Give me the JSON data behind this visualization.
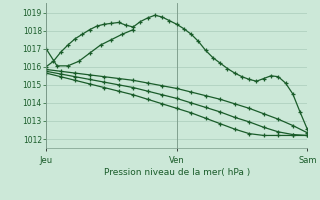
{
  "background_color": "#cce8d8",
  "grid_color": "#aaccbb",
  "line_color": "#1a5c2a",
  "title": "Pression niveau de la mer( hPa )",
  "ylim": [
    1011.5,
    1019.5
  ],
  "yticks": [
    1012,
    1013,
    1014,
    1015,
    1016,
    1017,
    1018,
    1019
  ],
  "day_labels": [
    "Jeu",
    "Ven",
    "Sam"
  ],
  "day_positions": [
    0,
    36,
    72
  ],
  "figsize": [
    3.2,
    2.0
  ],
  "dpi": 100,
  "series_main_x": [
    0,
    2,
    4,
    6,
    8,
    10,
    12,
    14,
    16,
    18,
    20,
    22,
    24,
    26,
    28,
    30,
    32,
    34,
    36,
    38,
    40,
    42,
    44,
    46,
    48,
    50,
    52,
    54,
    56,
    58,
    60,
    62,
    64,
    66,
    68,
    70,
    72
  ],
  "series_main_y": [
    1016.0,
    1016.3,
    1016.8,
    1017.2,
    1017.55,
    1017.8,
    1018.05,
    1018.25,
    1018.35,
    1018.4,
    1018.45,
    1018.3,
    1018.2,
    1018.5,
    1018.7,
    1018.85,
    1018.75,
    1018.55,
    1018.35,
    1018.1,
    1017.8,
    1017.4,
    1016.9,
    1016.5,
    1016.2,
    1015.9,
    1015.65,
    1015.45,
    1015.3,
    1015.2,
    1015.35,
    1015.5,
    1015.45,
    1015.1,
    1014.5,
    1013.5,
    1012.55
  ],
  "series_top_x": [
    0,
    3,
    6,
    9,
    12,
    15,
    18,
    21,
    24
  ],
  "series_top_y": [
    1017.0,
    1016.05,
    1016.05,
    1016.3,
    1016.75,
    1017.2,
    1017.5,
    1017.8,
    1018.05
  ],
  "series_low1_x": [
    0,
    4,
    8,
    12,
    16,
    20,
    24,
    28,
    32,
    36,
    40,
    44,
    48,
    52,
    56,
    60,
    64,
    68,
    72
  ],
  "series_low1_y": [
    1015.85,
    1015.75,
    1015.65,
    1015.55,
    1015.45,
    1015.35,
    1015.25,
    1015.1,
    1014.95,
    1014.8,
    1014.6,
    1014.4,
    1014.2,
    1013.95,
    1013.7,
    1013.4,
    1013.1,
    1012.75,
    1012.35
  ],
  "series_low2_x": [
    0,
    4,
    8,
    12,
    16,
    20,
    24,
    28,
    32,
    36,
    40,
    44,
    48,
    52,
    56,
    60,
    64,
    68,
    72
  ],
  "series_low2_y": [
    1015.75,
    1015.6,
    1015.45,
    1015.3,
    1015.15,
    1015.0,
    1014.85,
    1014.65,
    1014.45,
    1014.25,
    1014.0,
    1013.75,
    1013.5,
    1013.2,
    1012.95,
    1012.65,
    1012.4,
    1012.25,
    1012.2
  ],
  "series_low3_x": [
    0,
    4,
    8,
    12,
    16,
    20,
    24,
    28,
    32,
    36,
    40,
    44,
    48,
    52,
    56,
    60,
    64,
    68,
    72
  ],
  "series_low3_y": [
    1015.65,
    1015.45,
    1015.25,
    1015.05,
    1014.85,
    1014.65,
    1014.45,
    1014.2,
    1013.95,
    1013.7,
    1013.45,
    1013.15,
    1012.85,
    1012.55,
    1012.3,
    1012.2,
    1012.2,
    1012.2,
    1012.2
  ]
}
